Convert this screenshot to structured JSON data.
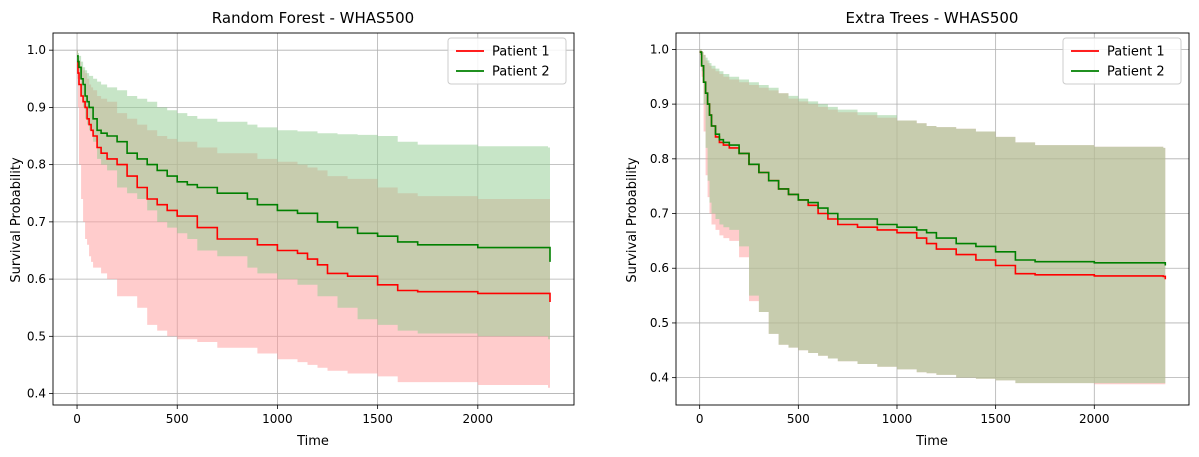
{
  "chart_data": [
    {
      "type": "line",
      "title": "Random Forest - WHAS500",
      "xlabel": "Time",
      "ylabel": "Survival Probability",
      "xlim": [
        -120,
        2480
      ],
      "ylim": [
        0.38,
        1.03
      ],
      "xticks": [
        0,
        500,
        1000,
        1500,
        2000
      ],
      "yticks": [
        0.4,
        0.5,
        0.6,
        0.7,
        0.8,
        0.9,
        1.0
      ],
      "xtick_labels": [
        "0",
        "500",
        "1000",
        "1500",
        "2000"
      ],
      "ytick_labels": [
        "0.4",
        "0.5",
        "0.6",
        "0.7",
        "0.8",
        "0.9",
        "1.0"
      ],
      "grid": true,
      "legend_position": "top-right",
      "series": [
        {
          "name": "Patient 1",
          "color": "#ff0000",
          "band_color": "#ff9999",
          "x": [
            0,
            5,
            10,
            20,
            30,
            40,
            50,
            60,
            70,
            80,
            100,
            120,
            150,
            200,
            250,
            300,
            350,
            400,
            450,
            500,
            600,
            700,
            900,
            1000,
            1100,
            1150,
            1200,
            1250,
            1350,
            1500,
            1600,
            1700,
            2000,
            2350,
            2360
          ],
          "y": [
            0.98,
            0.96,
            0.94,
            0.92,
            0.91,
            0.9,
            0.88,
            0.87,
            0.86,
            0.85,
            0.83,
            0.82,
            0.81,
            0.8,
            0.78,
            0.76,
            0.74,
            0.73,
            0.72,
            0.71,
            0.69,
            0.67,
            0.66,
            0.65,
            0.645,
            0.635,
            0.625,
            0.61,
            0.605,
            0.59,
            0.58,
            0.578,
            0.575,
            0.575,
            0.56
          ],
          "lower": [
            0.95,
            0.9,
            0.8,
            0.74,
            0.7,
            0.67,
            0.66,
            0.64,
            0.63,
            0.62,
            0.62,
            0.61,
            0.6,
            0.57,
            0.57,
            0.55,
            0.52,
            0.51,
            0.5,
            0.495,
            0.49,
            0.48,
            0.47,
            0.46,
            0.455,
            0.45,
            0.445,
            0.44,
            0.435,
            0.43,
            0.42,
            0.42,
            0.415,
            0.41,
            0.4
          ],
          "upper": [
            1.0,
            0.99,
            0.98,
            0.97,
            0.965,
            0.96,
            0.95,
            0.94,
            0.935,
            0.93,
            0.92,
            0.915,
            0.91,
            0.89,
            0.88,
            0.87,
            0.86,
            0.85,
            0.845,
            0.84,
            0.83,
            0.82,
            0.81,
            0.805,
            0.8,
            0.795,
            0.79,
            0.78,
            0.775,
            0.76,
            0.75,
            0.745,
            0.74,
            0.74,
            0.74
          ]
        },
        {
          "name": "Patient 2",
          "color": "#008000",
          "band_color": "#90cc90",
          "x": [
            0,
            5,
            10,
            20,
            30,
            40,
            50,
            60,
            80,
            100,
            120,
            150,
            200,
            250,
            300,
            350,
            400,
            450,
            500,
            550,
            600,
            700,
            850,
            900,
            1000,
            1100,
            1200,
            1300,
            1400,
            1500,
            1600,
            1700,
            2000,
            2350,
            2360
          ],
          "y": [
            0.99,
            0.98,
            0.97,
            0.95,
            0.94,
            0.92,
            0.91,
            0.9,
            0.88,
            0.86,
            0.855,
            0.85,
            0.84,
            0.82,
            0.81,
            0.8,
            0.79,
            0.78,
            0.77,
            0.765,
            0.76,
            0.75,
            0.74,
            0.73,
            0.72,
            0.715,
            0.7,
            0.69,
            0.68,
            0.675,
            0.665,
            0.66,
            0.655,
            0.655,
            0.63
          ],
          "lower": [
            0.98,
            0.97,
            0.95,
            0.92,
            0.9,
            0.88,
            0.87,
            0.86,
            0.84,
            0.81,
            0.8,
            0.79,
            0.76,
            0.75,
            0.74,
            0.72,
            0.7,
            0.69,
            0.68,
            0.67,
            0.65,
            0.64,
            0.62,
            0.61,
            0.6,
            0.59,
            0.57,
            0.55,
            0.53,
            0.52,
            0.51,
            0.505,
            0.5,
            0.495,
            0.46
          ],
          "upper": [
            1.0,
            0.995,
            0.99,
            0.98,
            0.97,
            0.965,
            0.96,
            0.955,
            0.95,
            0.945,
            0.94,
            0.935,
            0.93,
            0.92,
            0.915,
            0.91,
            0.9,
            0.895,
            0.89,
            0.885,
            0.88,
            0.875,
            0.87,
            0.865,
            0.86,
            0.858,
            0.855,
            0.853,
            0.852,
            0.85,
            0.84,
            0.835,
            0.832,
            0.83,
            0.83
          ]
        }
      ]
    },
    {
      "type": "line",
      "title": "Extra Trees - WHAS500",
      "xlabel": "Time",
      "ylabel": "Survival Probability",
      "xlim": [
        -120,
        2480
      ],
      "ylim": [
        0.35,
        1.03
      ],
      "xticks": [
        0,
        500,
        1000,
        1500,
        2000
      ],
      "yticks": [
        0.4,
        0.5,
        0.6,
        0.7,
        0.8,
        0.9,
        1.0
      ],
      "xtick_labels": [
        "0",
        "500",
        "1000",
        "1500",
        "2000"
      ],
      "ytick_labels": [
        "0.4",
        "0.5",
        "0.6",
        "0.7",
        "0.8",
        "0.9",
        "1.0"
      ],
      "grid": true,
      "legend_position": "top-right",
      "series": [
        {
          "name": "Patient 1",
          "color": "#ff0000",
          "band_color": "#ff9999",
          "x": [
            0,
            10,
            20,
            30,
            40,
            50,
            60,
            80,
            100,
            120,
            150,
            200,
            250,
            300,
            350,
            400,
            450,
            500,
            550,
            600,
            650,
            700,
            800,
            900,
            1000,
            1100,
            1150,
            1200,
            1300,
            1400,
            1500,
            1600,
            1700,
            2000,
            2350,
            2360
          ],
          "y": [
            0.995,
            0.97,
            0.94,
            0.92,
            0.9,
            0.88,
            0.86,
            0.84,
            0.83,
            0.825,
            0.82,
            0.81,
            0.79,
            0.775,
            0.76,
            0.745,
            0.735,
            0.725,
            0.715,
            0.7,
            0.69,
            0.68,
            0.675,
            0.67,
            0.665,
            0.655,
            0.645,
            0.635,
            0.625,
            0.615,
            0.605,
            0.59,
            0.588,
            0.586,
            0.585,
            0.58
          ],
          "lower": [
            0.99,
            0.95,
            0.85,
            0.77,
            0.73,
            0.7,
            0.68,
            0.67,
            0.66,
            0.655,
            0.65,
            0.62,
            0.54,
            0.52,
            0.48,
            0.46,
            0.455,
            0.45,
            0.445,
            0.44,
            0.435,
            0.43,
            0.425,
            0.42,
            0.415,
            0.41,
            0.408,
            0.405,
            0.4,
            0.398,
            0.395,
            0.39,
            0.39,
            0.388,
            0.388,
            0.385
          ],
          "upper": [
            1.0,
            0.995,
            0.99,
            0.98,
            0.975,
            0.97,
            0.965,
            0.96,
            0.955,
            0.95,
            0.945,
            0.94,
            0.935,
            0.93,
            0.925,
            0.92,
            0.91,
            0.905,
            0.9,
            0.895,
            0.89,
            0.885,
            0.88,
            0.875,
            0.87,
            0.865,
            0.86,
            0.858,
            0.855,
            0.85,
            0.84,
            0.83,
            0.825,
            0.822,
            0.82,
            0.82
          ]
        },
        {
          "name": "Patient 2",
          "color": "#008000",
          "band_color": "#90cc90",
          "x": [
            0,
            10,
            20,
            30,
            40,
            50,
            60,
            80,
            100,
            120,
            150,
            200,
            250,
            300,
            350,
            400,
            450,
            500,
            550,
            600,
            650,
            700,
            800,
            900,
            1000,
            1100,
            1150,
            1200,
            1300,
            1400,
            1500,
            1600,
            1700,
            2000,
            2350,
            2360
          ],
          "y": [
            0.995,
            0.97,
            0.94,
            0.92,
            0.9,
            0.88,
            0.86,
            0.845,
            0.835,
            0.83,
            0.825,
            0.81,
            0.79,
            0.775,
            0.76,
            0.745,
            0.735,
            0.725,
            0.72,
            0.71,
            0.7,
            0.69,
            0.69,
            0.68,
            0.675,
            0.67,
            0.665,
            0.655,
            0.645,
            0.64,
            0.63,
            0.615,
            0.612,
            0.61,
            0.61,
            0.605
          ],
          "lower": [
            0.99,
            0.96,
            0.9,
            0.82,
            0.76,
            0.72,
            0.7,
            0.69,
            0.68,
            0.675,
            0.67,
            0.64,
            0.55,
            0.52,
            0.48,
            0.46,
            0.455,
            0.45,
            0.445,
            0.44,
            0.435,
            0.43,
            0.425,
            0.42,
            0.415,
            0.41,
            0.408,
            0.405,
            0.4,
            0.398,
            0.395,
            0.39,
            0.39,
            0.39,
            0.39,
            0.39
          ],
          "upper": [
            1.0,
            0.995,
            0.99,
            0.985,
            0.98,
            0.975,
            0.97,
            0.965,
            0.96,
            0.955,
            0.95,
            0.945,
            0.94,
            0.935,
            0.93,
            0.92,
            0.915,
            0.91,
            0.905,
            0.9,
            0.895,
            0.89,
            0.885,
            0.88,
            0.87,
            0.865,
            0.86,
            0.858,
            0.855,
            0.85,
            0.84,
            0.83,
            0.825,
            0.822,
            0.82,
            0.82
          ]
        }
      ]
    }
  ]
}
